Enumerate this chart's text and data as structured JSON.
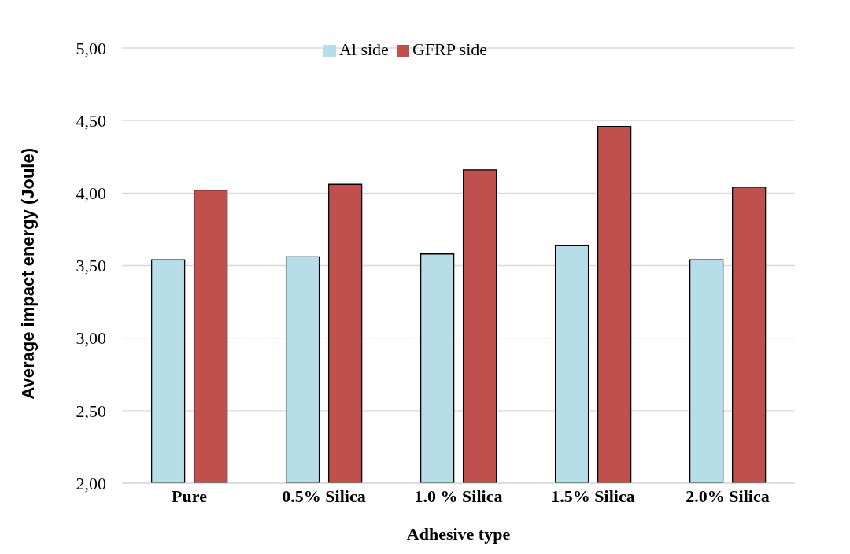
{
  "chart_data": {
    "type": "bar",
    "xlabel": "Adhesive type",
    "ylabel": "Average impact energy (Joule)",
    "categories": [
      "Pure",
      "0.5% Silica",
      "1.0 % Silica",
      "1.5% Silica",
      "2.0% Silica"
    ],
    "series": [
      {
        "name": "Al side",
        "color": "#b7dde8",
        "values": [
          3.54,
          3.56,
          3.58,
          3.64,
          3.54
        ]
      },
      {
        "name": "GFRP side",
        "color": "#c0504d",
        "values": [
          4.02,
          4.06,
          4.16,
          4.46,
          4.04
        ]
      }
    ],
    "ylim": [
      2,
      5
    ],
    "yticks": [
      {
        "value": 2,
        "label": "2,00"
      },
      {
        "value": 2.5,
        "label": "2,50"
      },
      {
        "value": 3,
        "label": "3,00"
      },
      {
        "value": 3.5,
        "label": "3,50"
      },
      {
        "value": 4,
        "label": "4,00"
      },
      {
        "value": 4.5,
        "label": "4,50"
      },
      {
        "value": 5,
        "label": "5,00"
      }
    ],
    "grid": "y",
    "legend": "top"
  }
}
